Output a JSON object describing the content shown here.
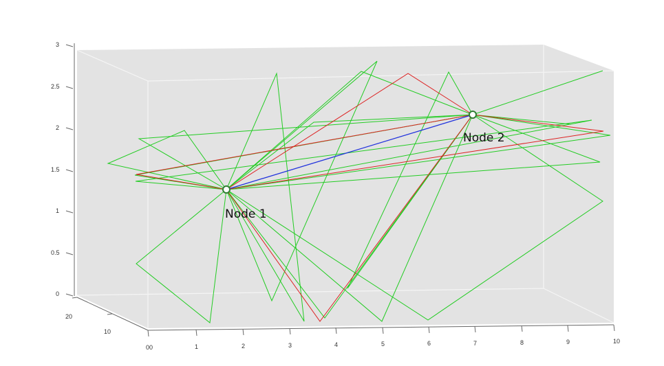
{
  "colors": {
    "background": "#ffffff",
    "plot_box": "#e3e3e3",
    "box_edge": "#f5f5f5",
    "axis": "#666666",
    "green": "#22cc22",
    "red": "#dd2222",
    "blue": "#2233dd",
    "node_fill": "#ffffff",
    "node_stroke": "#2e7d32"
  },
  "axes": {
    "z_ticks": [
      "0",
      "0.5",
      "1",
      "1.5",
      "2",
      "2.5",
      "3"
    ],
    "x_ticks": [
      "00",
      "1",
      "2",
      "3",
      "4",
      "5",
      "6",
      "7",
      "8",
      "9",
      "10"
    ],
    "y_ticks": [
      "10",
      "20"
    ]
  },
  "nodes": [
    {
      "id": "node-1",
      "label": "Node 1"
    },
    {
      "id": "node-2",
      "label": "Node 2"
    }
  ]
}
